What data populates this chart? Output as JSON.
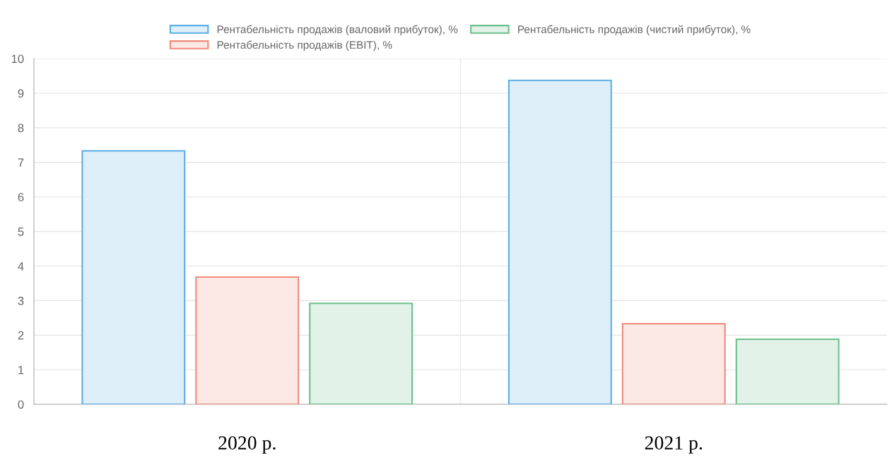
{
  "chart_data": {
    "type": "bar",
    "categories": [
      "2020 р.",
      "2021 р."
    ],
    "series": [
      {
        "name": "Рентабельність продажів (валовий прибуток), %",
        "color": "#5aaee6",
        "values": [
          7.33,
          9.37
        ]
      },
      {
        "name": "Рентабельність продажів (EBIT), %",
        "color": "#f08a7a",
        "values": [
          3.68,
          2.33
        ]
      },
      {
        "name": "Рентабельність продажів (чистий прибуток), %",
        "color": "#6cc08b",
        "values": [
          2.92,
          1.88
        ]
      }
    ],
    "ylim": [
      0,
      10
    ],
    "yticks": [
      0,
      1,
      2,
      3,
      4,
      5,
      6,
      7,
      8,
      9,
      10
    ],
    "grid": true,
    "legend": "top"
  }
}
